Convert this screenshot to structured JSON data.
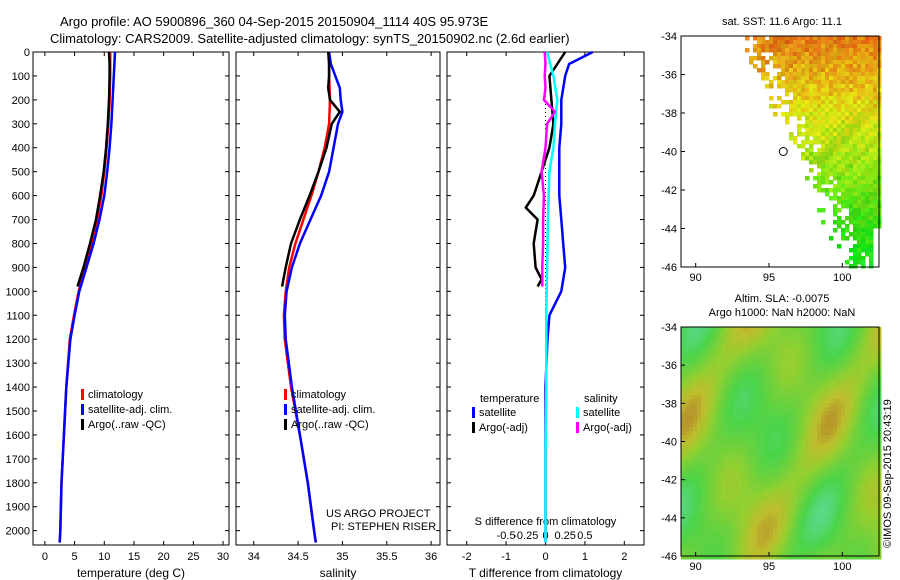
{
  "title_line1": "Argo profile: AO 5900896_360 04-Sep-2015 20150904_1114 40S 95.973E",
  "title_line2": "Climatology: CARS2009. Satellite-adjusted climatology: synTS_20150902.nc (2.6d earlier)",
  "colors": {
    "climatology": "#ff0000",
    "satellite": "#0000ff",
    "argo": "#000000",
    "sat_salinity": "#00ffff",
    "argo_salinity": "#ff00ff"
  },
  "project_line1": "US ARGO PROJECT",
  "project_line2": "PI: STEPHEN RISER",
  "credit": "©IMOS 09-Sep-2015 20:43:19",
  "chart_data": [
    {
      "type": "line",
      "name": "temperature-profile",
      "xlabel": "temperature (deg C)",
      "xlim": [
        -2,
        31
      ],
      "ylim": [
        0,
        2060
      ],
      "xticks": [
        0,
        5,
        10,
        15,
        20,
        25,
        30
      ],
      "yticks": [
        0,
        100,
        200,
        300,
        400,
        500,
        600,
        700,
        800,
        900,
        1000,
        1100,
        1200,
        1300,
        1400,
        1500,
        1600,
        1700,
        1800,
        1900,
        2000
      ],
      "legend": [
        "climatology",
        "satellite-adj. clim.",
        "Argo(..raw -QC)"
      ],
      "series": [
        {
          "name": "climatology",
          "depth": [
            0,
            100,
            200,
            300,
            400,
            500,
            600,
            700,
            800,
            900,
            1000,
            1100,
            1200,
            1400,
            1600,
            1800,
            2000,
            2050
          ],
          "values": [
            11.0,
            11.0,
            10.9,
            10.7,
            10.4,
            10.0,
            9.5,
            8.8,
            7.8,
            6.8,
            5.7,
            4.9,
            4.2,
            3.6,
            3.2,
            2.8,
            2.6,
            2.5
          ]
        },
        {
          "name": "satellite-adj. clim.",
          "depth": [
            0,
            50,
            100,
            200,
            300,
            400,
            500,
            600,
            700,
            800,
            900,
            1000,
            1100,
            1200,
            1400,
            1600,
            1800,
            2000,
            2050
          ],
          "values": [
            11.8,
            11.7,
            11.6,
            11.4,
            11.2,
            10.9,
            10.5,
            10.0,
            9.2,
            8.2,
            7.0,
            5.8,
            5.0,
            4.3,
            3.6,
            3.2,
            2.8,
            2.6,
            2.5
          ]
        },
        {
          "name": "Argo(..raw -QC)",
          "depth": [
            0,
            50,
            100,
            200,
            300,
            400,
            500,
            600,
            700,
            800,
            900,
            980
          ],
          "values": [
            10.8,
            10.9,
            10.9,
            10.8,
            10.6,
            10.3,
            9.9,
            9.3,
            8.6,
            7.6,
            6.5,
            5.5
          ]
        }
      ]
    },
    {
      "type": "line",
      "name": "salinity-profile",
      "xlabel": "salinity",
      "xlim": [
        33.8,
        36.1
      ],
      "ylim": [
        0,
        2060
      ],
      "xticks": [
        34,
        34.5,
        35,
        35.5,
        36
      ],
      "xticklabels": [
        "34",
        "34.5",
        "35",
        "35.5",
        "36"
      ],
      "legend": [
        "climatology",
        "satellite-adj. clim.",
        "Argo(..raw -QC)"
      ],
      "series": [
        {
          "name": "climatology",
          "depth": [
            0,
            100,
            200,
            300,
            400,
            500,
            600,
            700,
            800,
            900,
            1000,
            1100,
            1200,
            1400,
            1600,
            1800,
            2000,
            2050
          ],
          "values": [
            34.85,
            34.85,
            34.86,
            34.85,
            34.8,
            34.73,
            34.65,
            34.56,
            34.47,
            34.4,
            34.36,
            34.34,
            34.35,
            34.42,
            34.52,
            34.61,
            34.68,
            34.7
          ]
        },
        {
          "name": "satellite-adj. clim.",
          "depth": [
            0,
            50,
            100,
            150,
            200,
            250,
            300,
            400,
            500,
            600,
            700,
            800,
            900,
            1000,
            1100,
            1200,
            1400,
            1600,
            1800,
            2000,
            2050
          ],
          "values": [
            34.85,
            34.87,
            34.92,
            34.97,
            34.98,
            35.0,
            34.95,
            34.9,
            34.85,
            34.76,
            34.64,
            34.52,
            34.43,
            34.37,
            34.35,
            34.36,
            34.43,
            34.52,
            34.61,
            34.68,
            34.7
          ]
        },
        {
          "name": "Argo(..raw -QC)",
          "depth": [
            0,
            50,
            100,
            150,
            200,
            250,
            300,
            400,
            500,
            600,
            700,
            800,
            900,
            980
          ],
          "values": [
            34.84,
            34.85,
            34.85,
            34.84,
            34.86,
            34.97,
            34.88,
            34.82,
            34.73,
            34.63,
            34.52,
            34.42,
            34.36,
            34.32
          ]
        }
      ]
    },
    {
      "type": "line",
      "name": "difference-profile",
      "xlabel": "T difference from climatology",
      "xlabel_top": "S difference from climatology",
      "xlim": [
        -2.5,
        2.5
      ],
      "ylim": [
        0,
        2060
      ],
      "xticks": [
        -2,
        -1,
        0,
        1,
        2
      ],
      "xticks_top": [
        -0.5,
        -0.25,
        0,
        0.25,
        0.5
      ],
      "legend_title_left": "temperature",
      "legend_title_right": "salinity",
      "legend_left": [
        "satellite",
        "Argo(-adj)"
      ],
      "legend_right": [
        "satellite",
        "Argo(-adj)"
      ],
      "series": [
        {
          "name": "temperature satellite",
          "depth": [
            0,
            50,
            100,
            200,
            300,
            400,
            500,
            600,
            700,
            800,
            900,
            1000,
            1100,
            1200,
            1400,
            1600,
            1800,
            2000,
            2050
          ],
          "values": [
            1.2,
            0.6,
            0.5,
            0.4,
            0.4,
            0.35,
            0.35,
            0.35,
            0.4,
            0.45,
            0.5,
            0.4,
            0.1,
            0.05,
            0.0,
            0.0,
            0.0,
            0.0,
            0.0
          ]
        },
        {
          "name": "temperature Argo(-adj)",
          "depth": [
            0,
            50,
            100,
            200,
            300,
            400,
            500,
            600,
            650,
            700,
            800,
            900,
            950,
            980
          ],
          "values": [
            0.5,
            0.3,
            0.1,
            0.15,
            0.2,
            0.1,
            -0.1,
            -0.3,
            -0.5,
            -0.2,
            -0.3,
            -0.25,
            -0.1,
            -0.2
          ]
        },
        {
          "name": "salinity satellite",
          "depth": [
            0,
            100,
            200,
            300,
            400,
            500,
            700,
            900,
            1100,
            1400,
            1700,
            2000,
            2050
          ],
          "values": [
            0.02,
            0.1,
            0.15,
            0.12,
            0.1,
            0.05,
            0.03,
            0.02,
            0.01,
            0.01,
            0.0,
            0.0,
            0.0
          ]
        },
        {
          "name": "salinity Argo(-adj)",
          "depth": [
            0,
            50,
            100,
            150,
            200,
            250,
            300,
            400,
            500,
            600,
            700,
            800,
            900,
            980
          ],
          "values": [
            -0.01,
            0.0,
            -0.01,
            0.0,
            -0.02,
            0.12,
            0.02,
            0.0,
            -0.05,
            -0.02,
            -0.03,
            -0.03,
            -0.04,
            -0.04
          ]
        }
      ]
    },
    {
      "type": "heatmap",
      "name": "sst-map",
      "title": "sat. SST: 11.6 Argo: 11.1",
      "xlim": [
        89,
        102.5
      ],
      "ylim": [
        -46,
        -34
      ],
      "xticks": [
        90,
        95,
        100
      ],
      "yticks": [
        -34,
        -36,
        -38,
        -40,
        -42,
        -44,
        -46
      ],
      "argo_position": [
        95.973,
        -40
      ]
    },
    {
      "type": "heatmap",
      "name": "sla-map",
      "title_line1": "Altim. SLA: -0.0075",
      "title_line2": "Argo h1000: NaN h2000: NaN",
      "xlim": [
        89,
        102.5
      ],
      "ylim": [
        -46,
        -34
      ],
      "xticks": [
        90,
        95,
        100
      ],
      "yticks": [
        -34,
        -36,
        -38,
        -40,
        -42,
        -44,
        -46
      ]
    }
  ]
}
